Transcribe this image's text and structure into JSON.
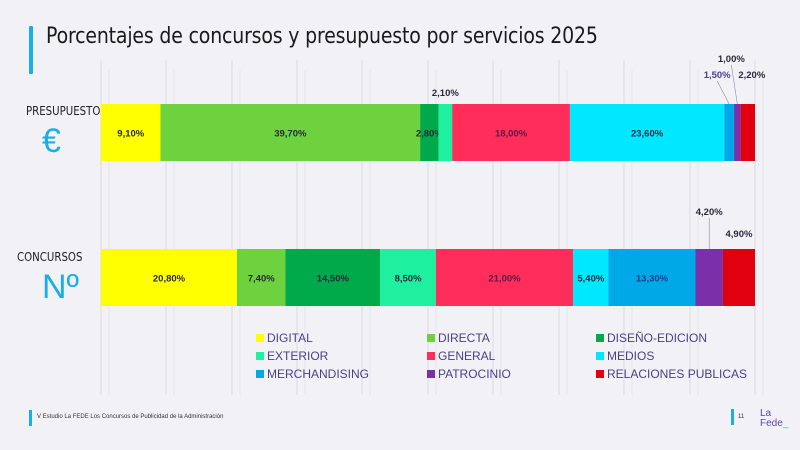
{
  "header": {
    "title": "Porcentajes de concursos y presupuesto por servicios 2025"
  },
  "rows": [
    {
      "label": "PRESUPUESTO",
      "icon": "€",
      "icon_name": "euro-icon"
    },
    {
      "label": "CONCURSOS",
      "icon": "Nº",
      "icon_name": "numero-icon"
    }
  ],
  "chart_data": {
    "type": "bar",
    "orientation": "horizontal",
    "stacked": true,
    "normalized_percent": true,
    "title": "Porcentajes de concursos y presupuesto por servicios 2025",
    "categories": [
      "PRESUPUESTO",
      "CONCURSOS"
    ],
    "xlim": [
      0,
      100
    ],
    "grid": true,
    "legend_position": "bottom",
    "series": [
      {
        "name": "DIGITAL",
        "color": "#ffff00",
        "values": [
          9.1,
          20.8
        ],
        "labels": [
          "9,10%",
          "20,80%"
        ]
      },
      {
        "name": "DIRECTA",
        "color": "#6dd23d",
        "values": [
          39.7,
          7.4
        ],
        "labels": [
          "39,70%",
          "7,40%"
        ]
      },
      {
        "name": "DISEÑO-EDICION",
        "color": "#00a94a",
        "values": [
          2.8,
          14.5
        ],
        "labels": [
          "2,80%",
          "14,50%"
        ]
      },
      {
        "name": "EXTERIOR",
        "color": "#1ef0a0",
        "values": [
          2.1,
          8.5
        ],
        "labels": [
          "2,10%",
          "8,50%"
        ]
      },
      {
        "name": "GENERAL",
        "color": "#ff2d5a",
        "values": [
          18.0,
          21.0
        ],
        "labels": [
          "18,00%",
          "21,00%"
        ]
      },
      {
        "name": "MEDIOS",
        "color": "#00e8ff",
        "values": [
          23.6,
          5.4
        ],
        "labels": [
          "23,60%",
          "5,40%"
        ]
      },
      {
        "name": "MERCHANDISING",
        "color": "#00a8e8",
        "values": [
          1.5,
          13.3
        ],
        "labels": [
          "1,50%",
          "13,30%"
        ]
      },
      {
        "name": "PATROCINIO",
        "color": "#7a30a8",
        "values": [
          1.0,
          4.2
        ],
        "labels": [
          "1,00%",
          "4,20%"
        ]
      },
      {
        "name": "RELACIONES PUBLICAS",
        "color": "#e00010",
        "values": [
          2.2,
          4.9
        ],
        "labels": [
          "2,20%",
          "4,90%"
        ]
      }
    ]
  },
  "footer": {
    "source": "V Estudio La FEDE Los Concursos de Publicidad de la Administración",
    "page": "11",
    "logo_line1": "La",
    "logo_line2": "Fede",
    "logo_suffix": "_"
  }
}
